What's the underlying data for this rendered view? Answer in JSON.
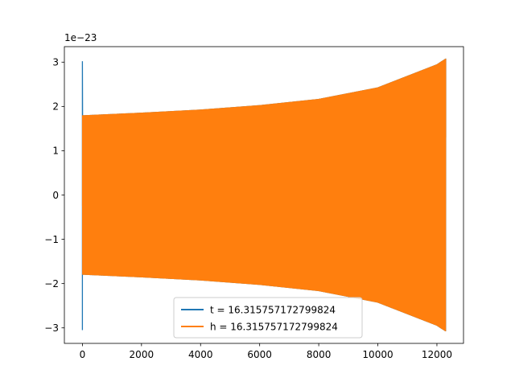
{
  "chart_data": {
    "type": "line",
    "title": "",
    "xlabel": "",
    "ylabel": "",
    "y_offset_text": "1e−23",
    "xlim": [
      -610,
      12900
    ],
    "ylim": [
      -3.35,
      3.35
    ],
    "x_ticks": [
      0,
      2000,
      4000,
      6000,
      8000,
      10000,
      12000
    ],
    "x_tick_labels": [
      "0",
      "2000",
      "4000",
      "6000",
      "8000",
      "10000",
      "12000"
    ],
    "y_ticks": [
      -3,
      -2,
      -1,
      0,
      1,
      2,
      3
    ],
    "y_tick_labels": [
      "−3",
      "−2",
      "−1",
      "0",
      "1",
      "2",
      "3"
    ],
    "grid": false,
    "legend_placement": "lower center",
    "series": [
      {
        "name": "t = 16.315757172799824",
        "color": "#1f77b4",
        "x_start": 0,
        "x_end": 12300,
        "initial_spike": [
          -3.05,
          3.02
        ],
        "envelope_x": [
          0,
          2000,
          4000,
          6000,
          8000,
          10000,
          12000,
          12300
        ],
        "envelope_amplitude": [
          1.8,
          1.86,
          1.93,
          2.03,
          2.17,
          2.43,
          2.95,
          3.08
        ],
        "end_value": 1.3
      },
      {
        "name": "h = 16.315757172799824",
        "color": "#ff7f0e",
        "x_start": 0,
        "x_end": 12300,
        "start_value": -0.25,
        "envelope_x": [
          0,
          2000,
          4000,
          6000,
          8000,
          10000,
          12000,
          12300
        ],
        "envelope_amplitude": [
          1.8,
          1.86,
          1.93,
          2.03,
          2.17,
          2.43,
          2.95,
          3.08
        ],
        "end_value": 1.3
      }
    ]
  }
}
